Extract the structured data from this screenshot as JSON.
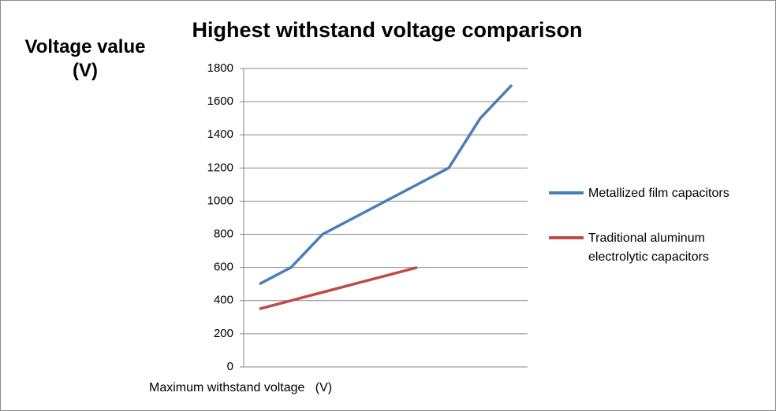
{
  "chart_data": {
    "type": "line",
    "title": "Highest withstand voltage comparison",
    "y_label": "Voltage value (V)",
    "x_label": "Maximum withstand voltage   (V)",
    "categories": [
      null,
      null,
      null,
      null,
      null,
      null,
      null,
      null,
      null
    ],
    "series": [
      {
        "name": "Metallized film capacitors",
        "color": "#4a7ebb",
        "values": [
          500,
          600,
          800,
          900,
          1000,
          1100,
          1200,
          1500,
          1700
        ]
      },
      {
        "name": "Traditional aluminum electrolytic capacitors",
        "color": "#be4b48",
        "values": [
          350,
          400,
          450,
          500,
          550,
          600,
          null,
          null,
          null
        ]
      }
    ],
    "ylim": [
      0,
      1800
    ],
    "yticks": [
      0,
      200,
      400,
      600,
      800,
      1000,
      1200,
      1400,
      1600,
      1800
    ],
    "grid": true,
    "legend": "right"
  }
}
